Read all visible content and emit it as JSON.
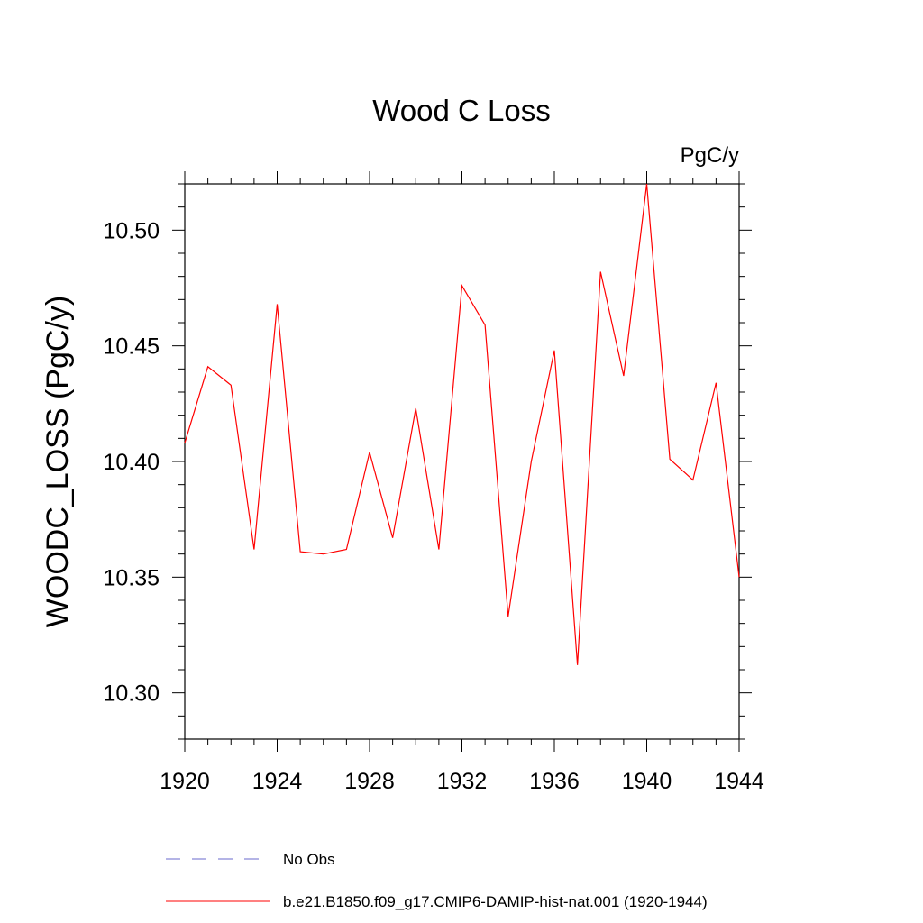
{
  "chart_data": {
    "type": "line",
    "title": "Wood C Loss",
    "units": "PgC/y",
    "ylabel": "WOODC_LOSS  (PgC/y)",
    "xlabel": "",
    "xlim": [
      1920,
      1944
    ],
    "ylim": [
      10.28,
      10.52
    ],
    "x_ticks": [
      1920,
      1924,
      1928,
      1932,
      1936,
      1940,
      1944
    ],
    "x_tick_labels": [
      "1920",
      "1924",
      "1928",
      "1932",
      "1936",
      "1940",
      "1944"
    ],
    "y_ticks": [
      10.3,
      10.35,
      10.4,
      10.45,
      10.5
    ],
    "y_tick_labels": [
      "10.30",
      "10.35",
      "10.40",
      "10.45",
      "10.50"
    ],
    "grid": false,
    "series": [
      {
        "name": "b.e21.B1850.f09_g17.CMIP6-DAMIP-hist-nat.001 (1920-1944)",
        "color": "#ff0000",
        "x": [
          1920,
          1921,
          1922,
          1923,
          1924,
          1925,
          1926,
          1927,
          1928,
          1929,
          1930,
          1931,
          1932,
          1933,
          1934,
          1935,
          1936,
          1937,
          1938,
          1939,
          1940,
          1941,
          1942,
          1943,
          1944
        ],
        "y": [
          10.408,
          10.441,
          10.433,
          10.362,
          10.468,
          10.361,
          10.36,
          10.362,
          10.404,
          10.367,
          10.423,
          10.362,
          10.476,
          10.459,
          10.333,
          10.4,
          10.448,
          10.312,
          10.482,
          10.437,
          10.52,
          10.401,
          10.392,
          10.434,
          10.35
        ]
      }
    ],
    "legend": {
      "position": "bottom",
      "entries": [
        {
          "label": "No Obs",
          "color": "#6a6acd",
          "style": "dashed"
        },
        {
          "label": "b.e21.B1850.f09_g17.CMIP6-DAMIP-hist-nat.001 (1920-1944)",
          "color": "#ff0000",
          "style": "solid"
        }
      ]
    }
  }
}
